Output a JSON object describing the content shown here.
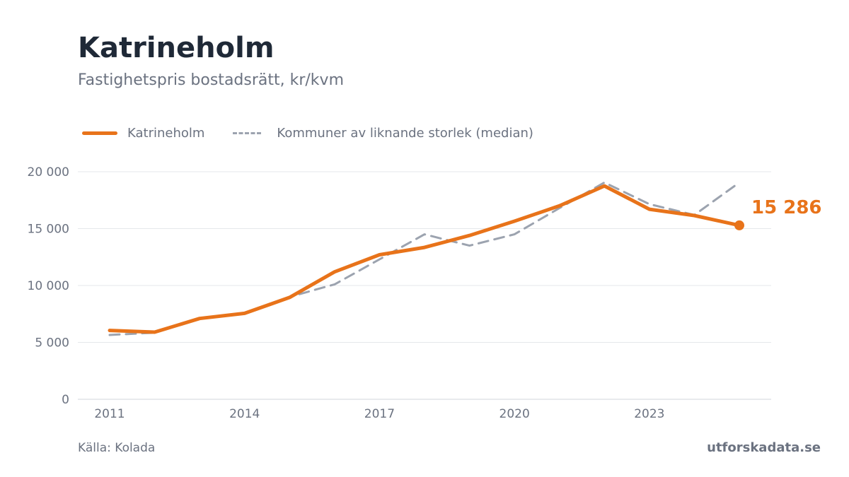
{
  "chart_data": {
    "type": "line",
    "title": "Katrineholm",
    "subtitle": "Fastighetspris bostadsrätt, kr/kvm",
    "x": [
      2011,
      2012,
      2013,
      2014,
      2015,
      2016,
      2017,
      2018,
      2019,
      2020,
      2021,
      2022,
      2023,
      2024,
      2025
    ],
    "x_ticks": [
      2011,
      2014,
      2017,
      2020,
      2023
    ],
    "series": [
      {
        "name": "Katrineholm",
        "style": "solid",
        "color": "#e8731a",
        "values": [
          6050,
          5900,
          7100,
          7550,
          8950,
          11200,
          12700,
          13350,
          14400,
          15650,
          17000,
          18750,
          16700,
          16150,
          15286
        ]
      },
      {
        "name": "Kommuner av liknande storlek (median)",
        "style": "dashed",
        "color": "#9ca3af",
        "values": [
          5650,
          5850,
          7050,
          7600,
          9000,
          10100,
          12300,
          14500,
          13500,
          14500,
          16800,
          19050,
          17150,
          16200,
          19050
        ]
      }
    ],
    "y_ticks": [
      0,
      5000,
      10000,
      15000,
      20000
    ],
    "y_tick_labels": [
      "0",
      "5 000",
      "10 000",
      "15 000",
      "20 000"
    ],
    "ylim": [
      0,
      20000
    ],
    "xlim": [
      2011,
      2025
    ],
    "grid": "horizontal",
    "legend": "top-left",
    "end_label": "15 286"
  },
  "source": "Källa: Kolada",
  "brand": "utforskadata.se"
}
